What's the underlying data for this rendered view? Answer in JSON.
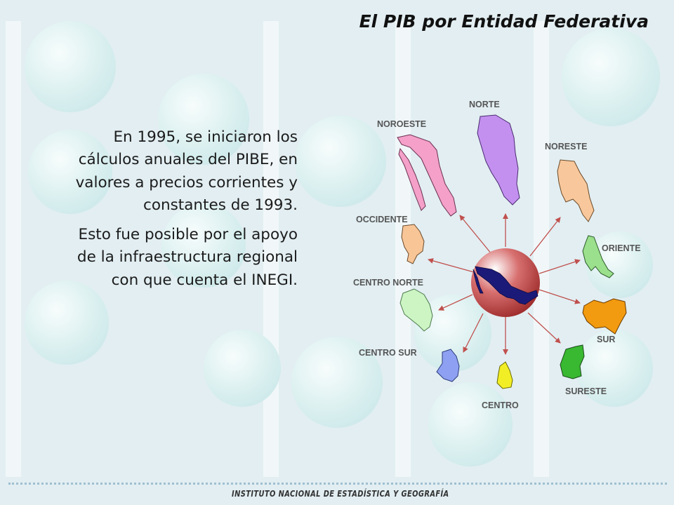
{
  "title": "El PIB por Entidad Federativa",
  "paragraphs": [
    "En 1995, se iniciaron los cálculos anuales del PIBE, en valores a precios corrientes y constantes de 1993.",
    "Esto fue posible por el apoyo de la infraestructura regional con que cuenta el INEGI."
  ],
  "regions": {
    "noroeste": {
      "label": "NOROESTE",
      "color": "#f4a0c8"
    },
    "norte": {
      "label": "NORTE",
      "color": "#c390f0"
    },
    "noreste": {
      "label": "NORESTE",
      "color": "#f8c89c"
    },
    "oriente": {
      "label": "ORIENTE",
      "color": "#9be08c"
    },
    "sur": {
      "label": "SUR",
      "color": "#f29a10"
    },
    "sureste": {
      "label": "SURESTE",
      "color": "#39b831"
    },
    "centro": {
      "label": "CENTRO",
      "color": "#f2ee26"
    },
    "centro_sur": {
      "label": "CENTRO SUR",
      "color": "#8ea0f2"
    },
    "centro_norte": {
      "label": "CENTRO NORTE",
      "color": "#cdf5c4"
    },
    "occidente": {
      "label": "OCCIDENTE",
      "color": "#f8c597"
    }
  },
  "colors": {
    "arrow": "#c0504d",
    "hub": "#b53b3b",
    "mexico_map": "#1c1a78"
  },
  "footer": "INSTITUTO NACIONAL DE ESTADÍSTICA Y GEOGRAFÍA"
}
